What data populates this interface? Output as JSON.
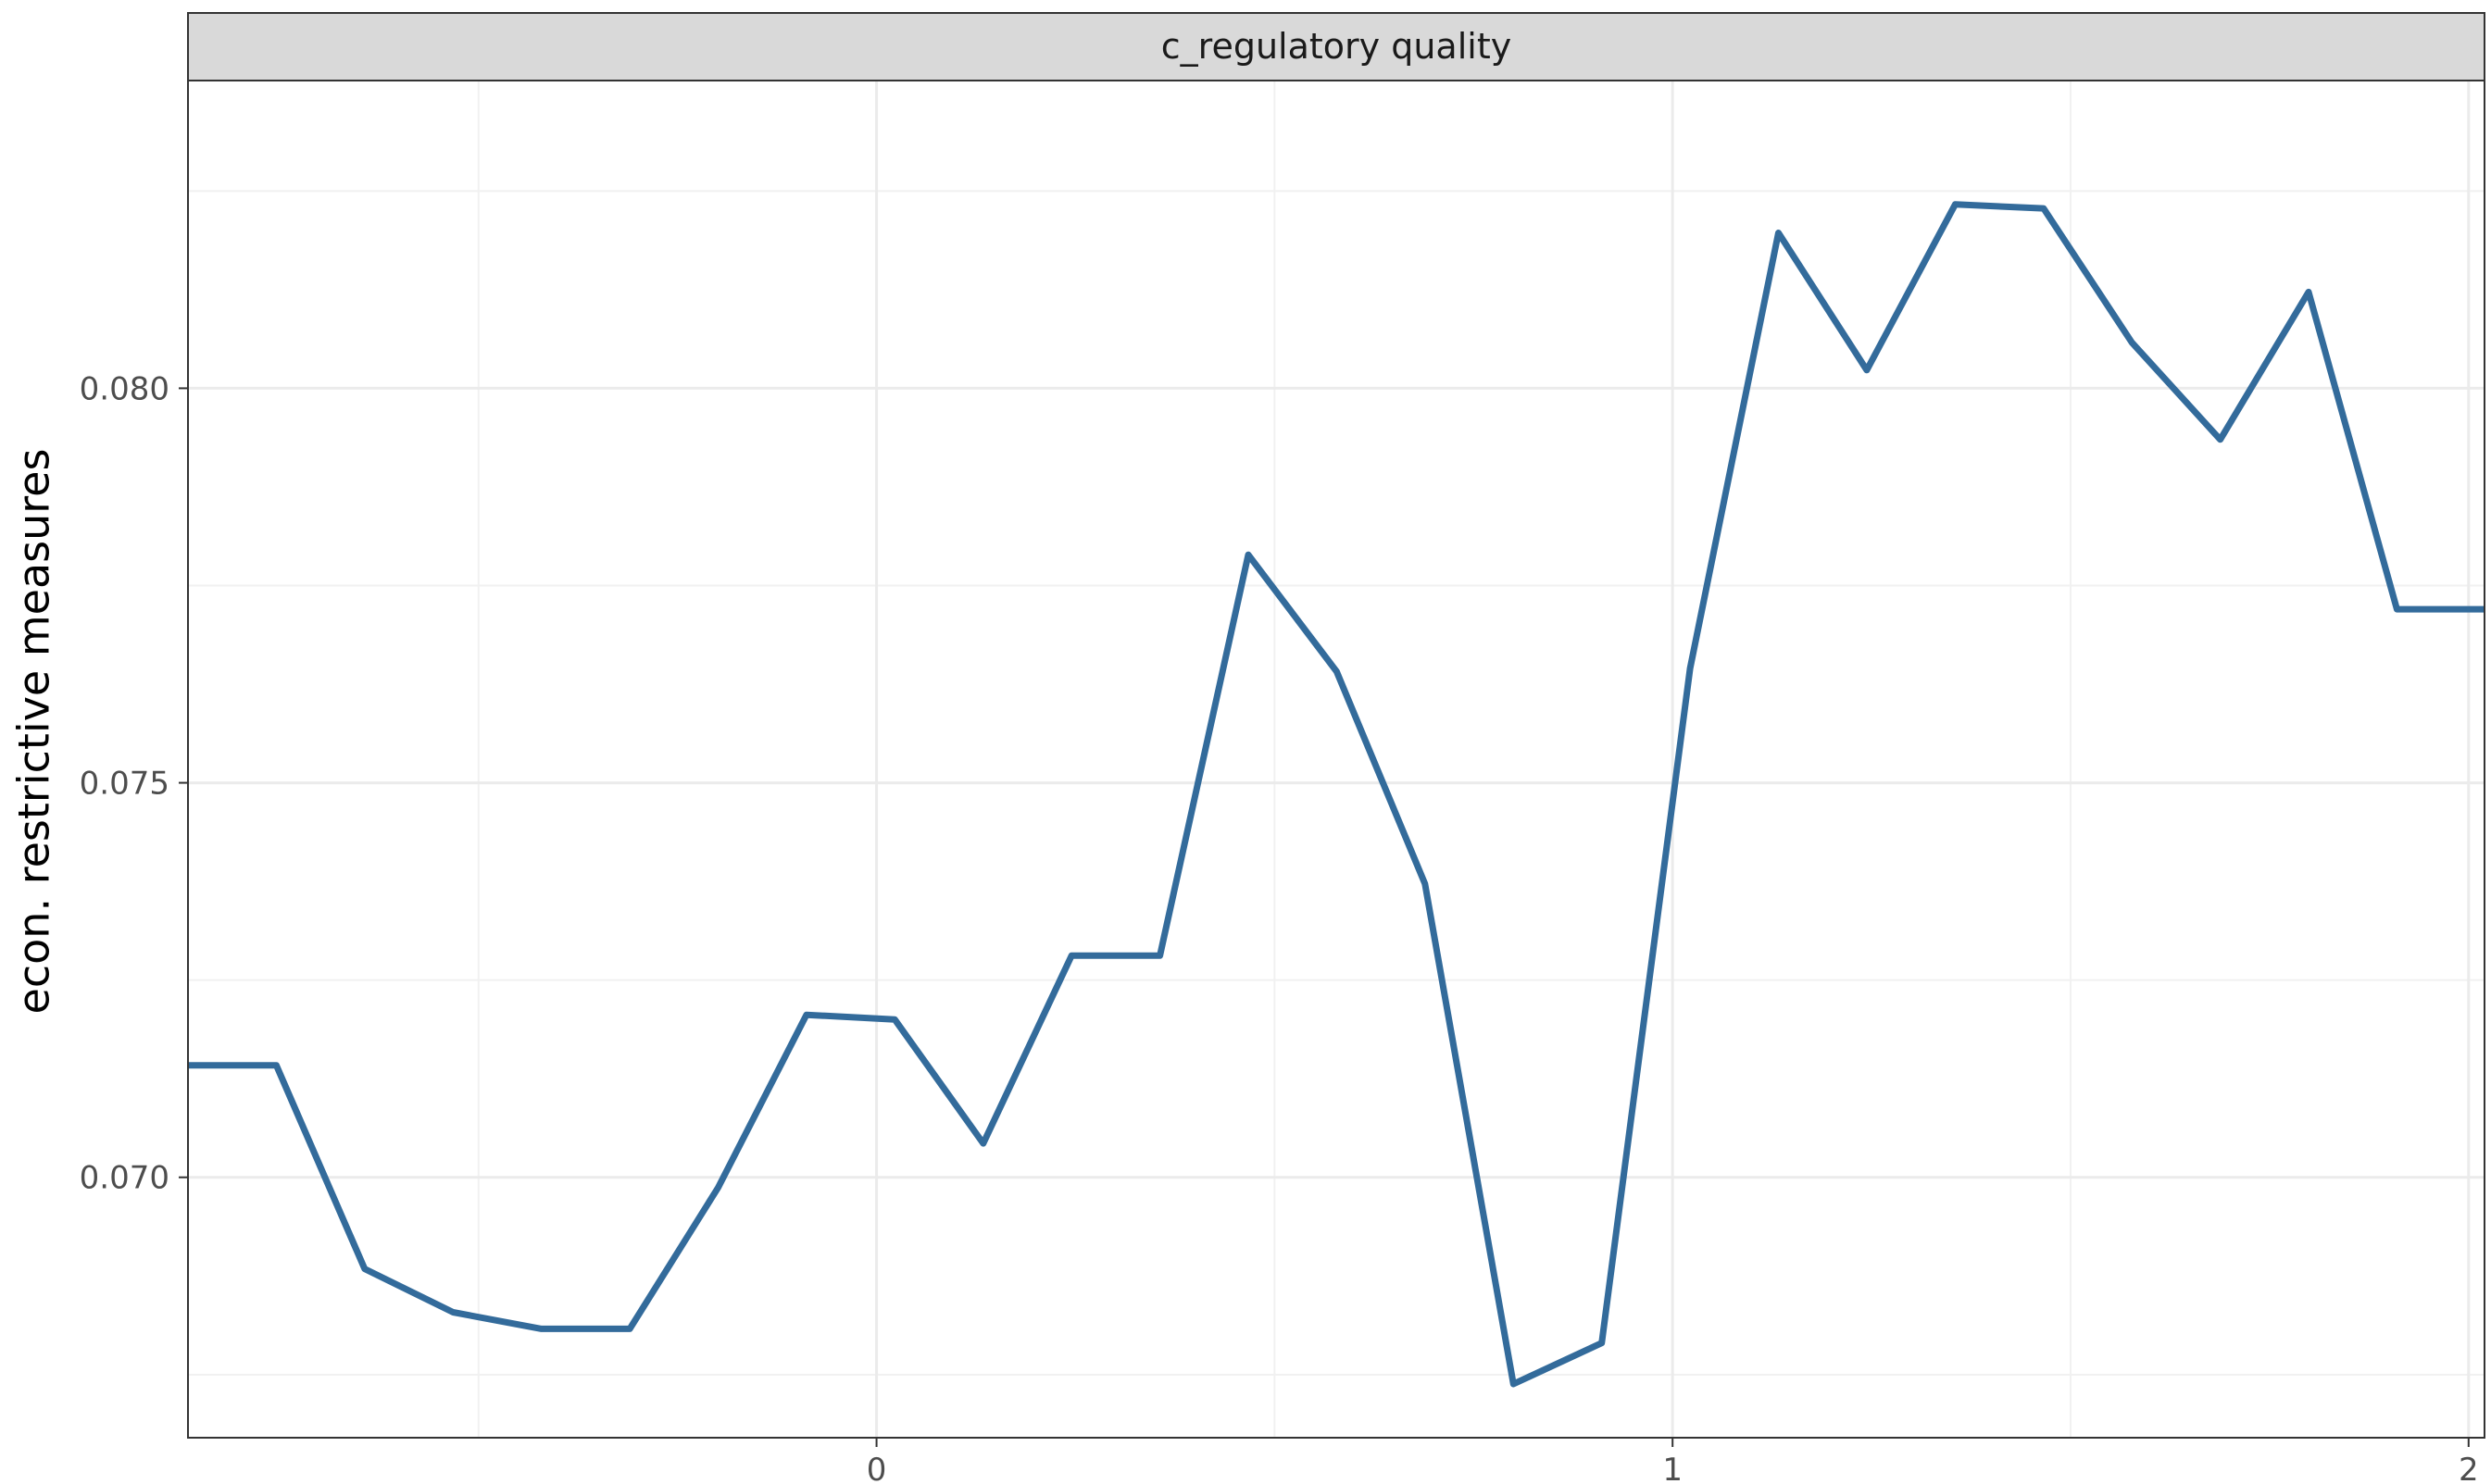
{
  "chart_data": {
    "type": "line",
    "facet_label": "c_regulatory quality",
    "xlabel": "",
    "ylabel": "econ. restrictive measures",
    "xlim": [
      -0.865,
      2.02
    ],
    "ylim": [
      0.0667,
      0.0839
    ],
    "x_ticks": [
      0,
      1,
      2
    ],
    "x_tick_labels": [
      "0",
      "1",
      "2"
    ],
    "y_ticks": [
      0.07,
      0.075,
      0.08
    ],
    "y_tick_labels": [
      "0.070",
      "0.075",
      "0.080"
    ],
    "x_minor_ticks": [
      -0.5,
      0.5,
      1.5
    ],
    "y_minor_ticks": [
      0.0675,
      0.0725,
      0.0775,
      0.0825
    ],
    "grid": true,
    "legend": "none",
    "series": [
      {
        "color": "#336b9b",
        "x": [
          -0.865,
          -0.754,
          -0.643,
          -0.532,
          -0.421,
          -0.31,
          -0.199,
          -0.088,
          0.023,
          0.134,
          0.245,
          0.356,
          0.467,
          0.578,
          0.689,
          0.8,
          0.911,
          1.022,
          1.133,
          1.244,
          1.355,
          1.466,
          1.577,
          1.688,
          1.799,
          1.91,
          2.02
        ],
        "y": [
          0.07142,
          0.07142,
          0.06884,
          0.06829,
          0.06808,
          0.06808,
          0.06987,
          0.07206,
          0.072,
          0.07043,
          0.07281,
          0.07281,
          0.07789,
          0.07641,
          0.07372,
          0.06738,
          0.0679,
          0.07645,
          0.08197,
          0.08023,
          0.08233,
          0.08228,
          0.08058,
          0.07935,
          0.08122,
          0.0772,
          0.0772
        ]
      }
    ]
  }
}
